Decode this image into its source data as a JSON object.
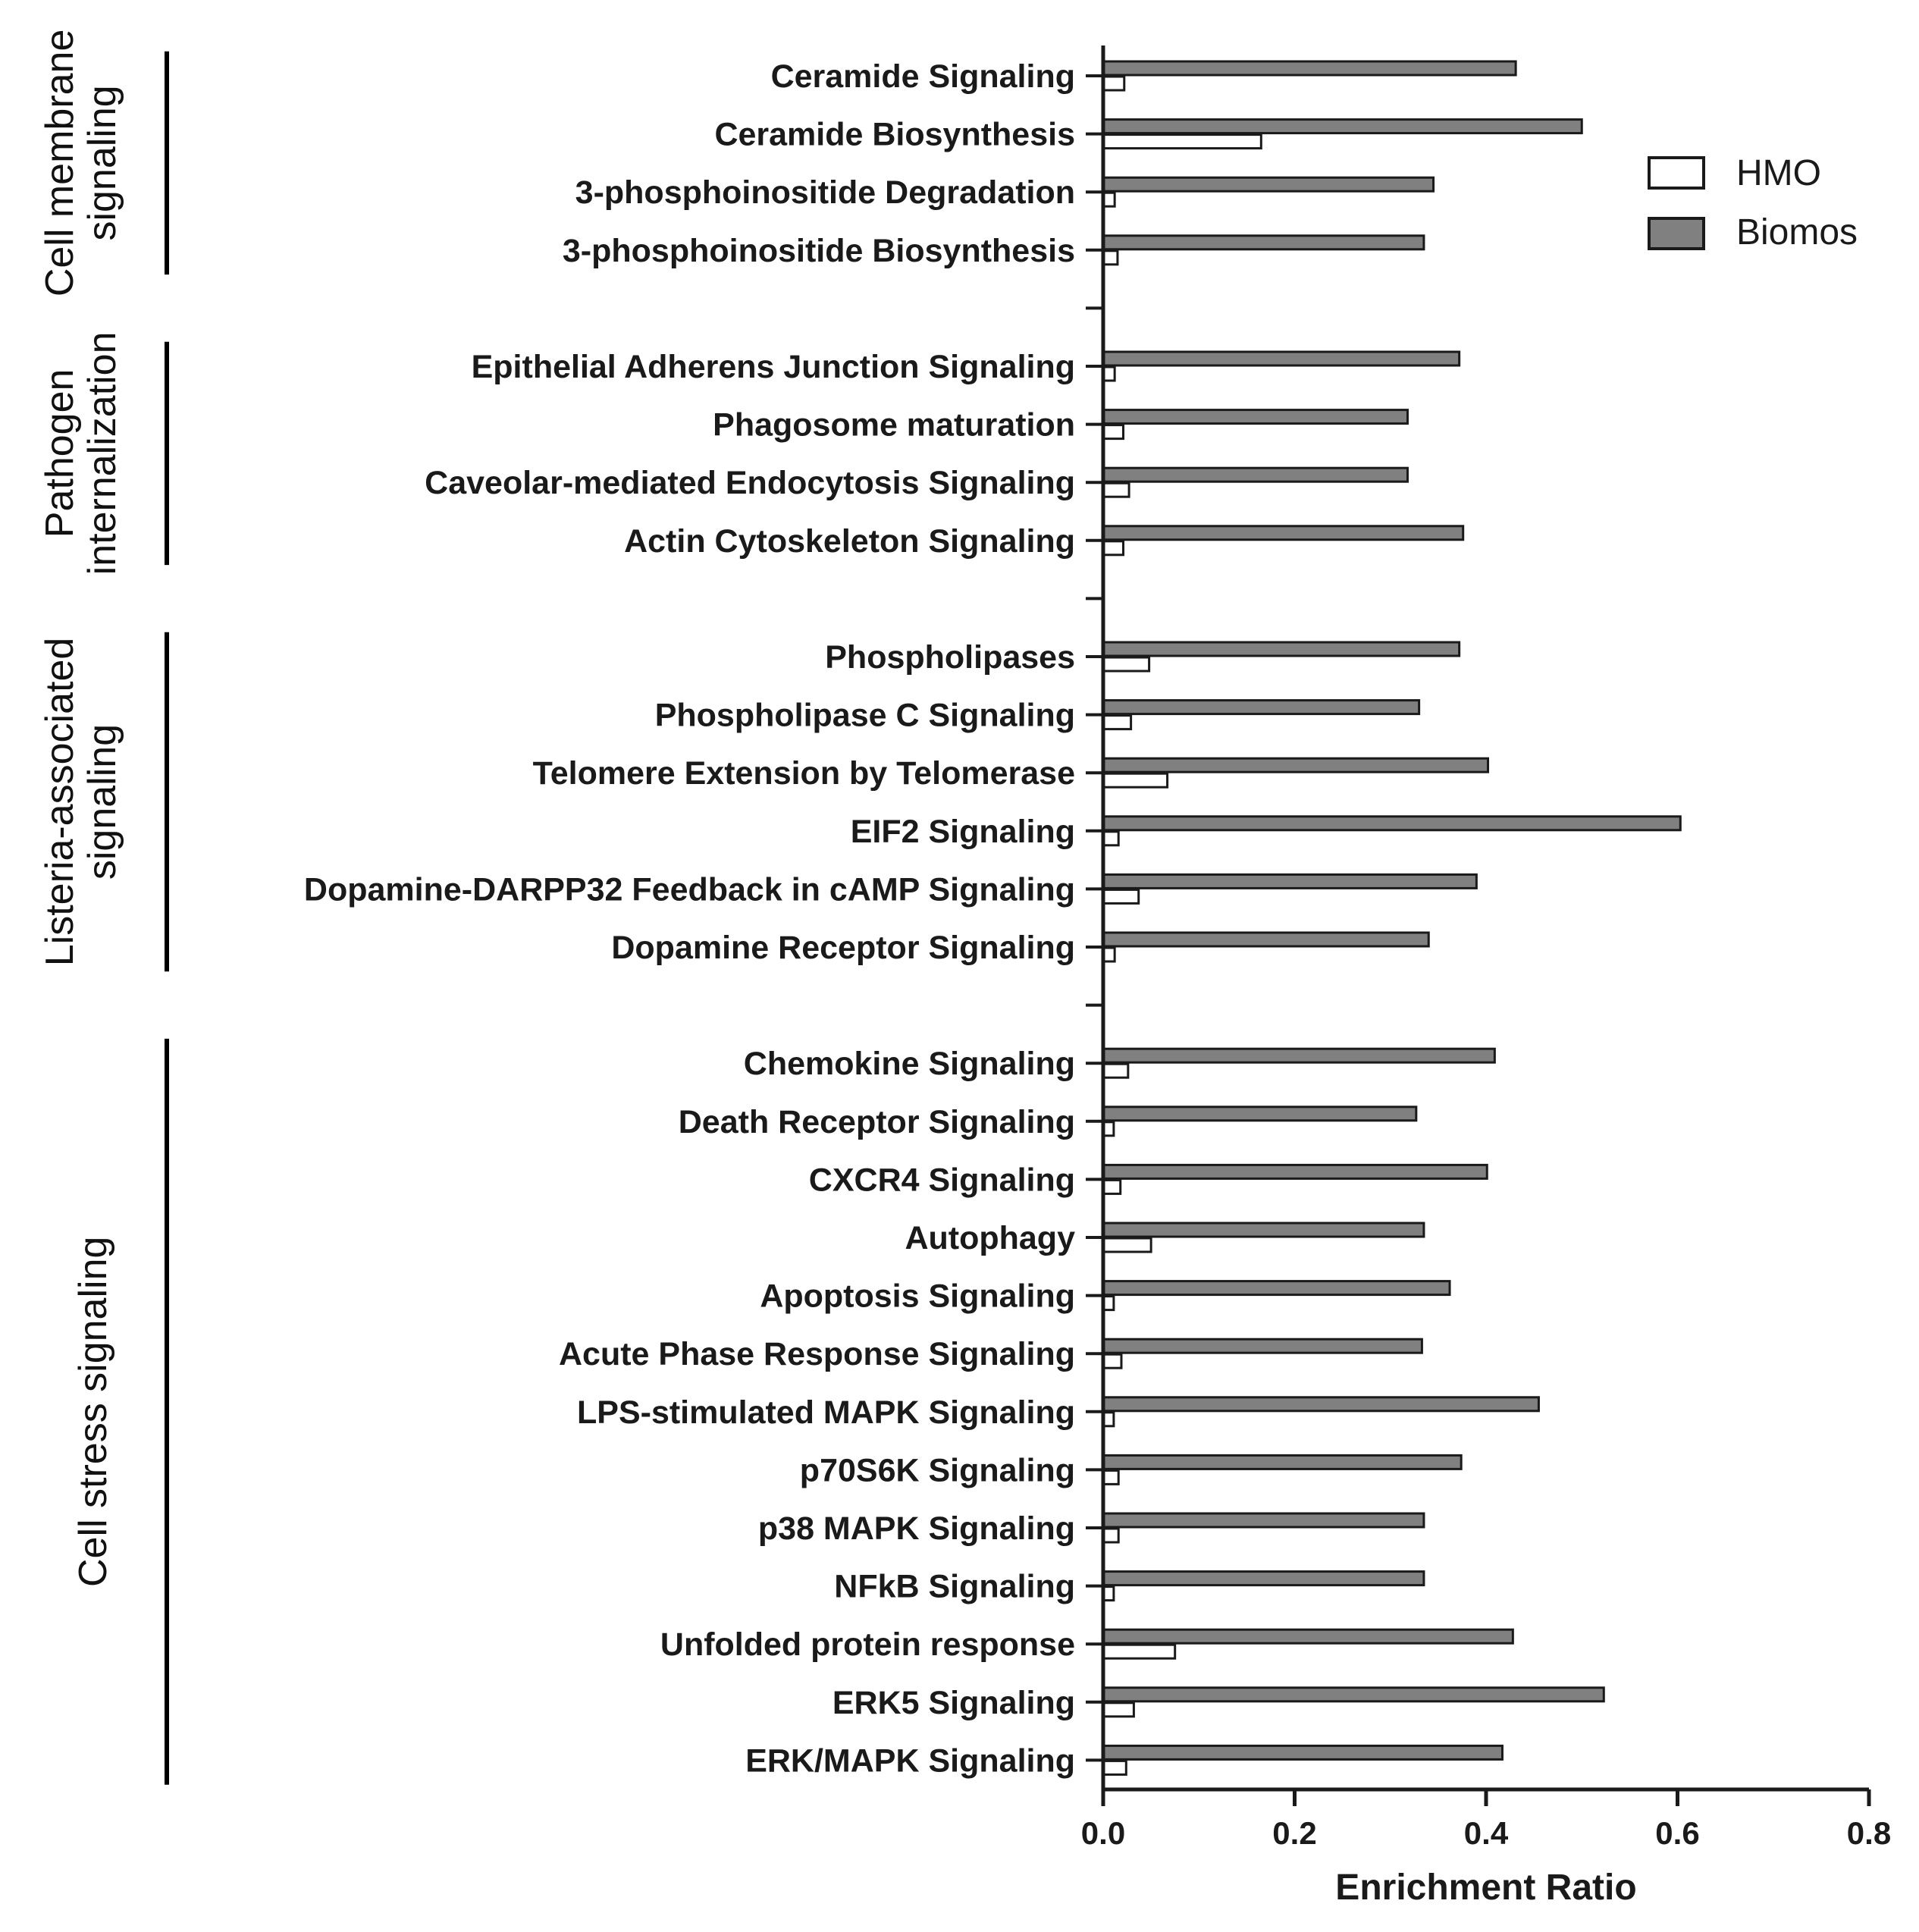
{
  "chart_data": {
    "type": "bar",
    "orientation": "horizontal",
    "xlabel": "Enrichment Ratio",
    "xlim": [
      0,
      0.8
    ],
    "xticks": [
      0,
      0.2,
      0.4,
      0.6,
      0.8
    ],
    "xtick_labels": [
      "0.0",
      "0.2",
      "0.4",
      "0.6",
      "0.8"
    ],
    "legend": {
      "placement": "top-right",
      "entries": [
        {
          "name": "HMO",
          "color": "#ffffff"
        },
        {
          "name": "Biomos",
          "color": "#808080"
        }
      ]
    },
    "groups": [
      {
        "label": "Cell membrane signaling",
        "label_lines": [
          "Cell membrane",
          "signaling"
        ],
        "categories": [
          "Ceramide Signaling",
          "Ceramide Biosynthesis",
          "3-phosphoinositide Degradation",
          "3-phosphoinositide Biosynthesis"
        ]
      },
      {
        "label": "Pathogen internalization",
        "label_lines": [
          "Pathogen",
          "internalization"
        ],
        "categories": [
          "Epithelial Adherens Junction Signaling",
          "Phagosome maturation",
          "Caveolar-mediated Endocytosis Signaling",
          "Actin Cytoskeleton Signaling"
        ]
      },
      {
        "label": "Listeria-associated signaling",
        "label_lines": [
          "Listeria-associated",
          "signaling"
        ],
        "categories": [
          "Phospholipases",
          "Phospholipase C Signaling",
          "Telomere Extension by Telomerase",
          "EIF2 Signaling",
          "Dopamine-DARPP32 Feedback in cAMP Signaling",
          "Dopamine Receptor Signaling"
        ]
      },
      {
        "label": "Cell stress signaling",
        "label_lines": [
          "Cell stress signaling"
        ],
        "categories": [
          "Chemokine Signaling",
          "Death Receptor Signaling",
          "CXCR4 Signaling",
          "Autophagy",
          "Apoptosis Signaling",
          "Acute Phase Response Signaling",
          "LPS-stimulated MAPK Signaling",
          "p70S6K Signaling",
          "p38 MAPK Signaling",
          "NFkB Signaling",
          "Unfolded protein response",
          "ERK5 Signaling",
          "ERK/MAPK Signaling"
        ]
      }
    ],
    "series": [
      {
        "name": "HMO",
        "values": [
          0.022,
          0.165,
          0.012,
          0.015,
          0.012,
          0.021,
          0.027,
          0.021,
          0.048,
          0.029,
          0.067,
          0.016,
          0.037,
          0.012,
          0.026,
          0.011,
          0.018,
          0.05,
          0.011,
          0.019,
          0.011,
          0.016,
          0.016,
          0.011,
          0.075,
          0.032,
          0.024
        ]
      },
      {
        "name": "Biomos",
        "values": [
          0.431,
          0.5,
          0.345,
          0.335,
          0.372,
          0.318,
          0.318,
          0.376,
          0.372,
          0.33,
          0.402,
          0.603,
          0.39,
          0.34,
          0.409,
          0.327,
          0.401,
          0.335,
          0.362,
          0.333,
          0.455,
          0.374,
          0.335,
          0.335,
          0.428,
          0.523,
          0.417
        ]
      }
    ]
  }
}
